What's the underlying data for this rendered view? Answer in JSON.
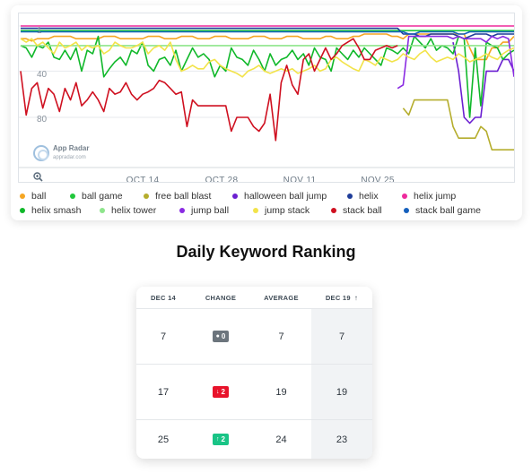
{
  "chart_data": {
    "type": "line",
    "x_labels": [
      "OCT 14",
      "OCT 28",
      "NOV 11",
      "NOV 25"
    ],
    "y_ticks": [
      "1",
      "40",
      "80"
    ],
    "y_reversed": true,
    "ylim": [
      1,
      100
    ],
    "series": [
      {
        "name": "ball",
        "color": "#f5a623",
        "values": [
          12,
          12,
          14,
          12,
          12,
          12,
          10,
          10,
          10,
          10,
          12,
          12,
          12,
          12,
          12,
          10,
          10,
          10,
          12,
          12,
          12,
          12,
          12,
          10,
          10,
          10,
          12,
          12,
          12,
          10,
          10,
          10,
          12,
          12,
          12,
          10,
          10,
          10,
          12,
          12,
          12,
          12,
          10,
          10,
          10,
          12,
          12,
          12,
          10,
          10,
          10,
          12,
          12,
          12,
          12,
          10,
          10,
          12,
          12,
          12,
          10,
          10,
          8,
          8,
          8,
          8,
          8,
          10,
          10,
          12,
          8,
          8,
          8,
          8,
          8,
          8,
          8,
          8,
          8,
          8,
          8,
          20,
          30,
          30,
          30,
          20,
          20,
          15,
          15,
          10
        ]
      },
      {
        "name": "ball game",
        "color": "#21c73b",
        "values": [
          5,
          5,
          5,
          5,
          5,
          5,
          5,
          5,
          5,
          5,
          5,
          5,
          5,
          5,
          5,
          5,
          5,
          5,
          5,
          5,
          5,
          5,
          5,
          5,
          5,
          5,
          5,
          5,
          5,
          5,
          5,
          5,
          5,
          5,
          5,
          5,
          5,
          5,
          5,
          5,
          5,
          5,
          5,
          5,
          5,
          5,
          5,
          5,
          5,
          5,
          5,
          5,
          5,
          5,
          5,
          5,
          5,
          5,
          5,
          5,
          5,
          5,
          5,
          5,
          5,
          5,
          5,
          5,
          5,
          5,
          5,
          5,
          5,
          5,
          5,
          5,
          5,
          5,
          5,
          5,
          5,
          5,
          5,
          5,
          5,
          5,
          5,
          5,
          5,
          5
        ]
      },
      {
        "name": "free ball blast",
        "color": "#b5ad2d",
        "values": [
          null,
          null,
          null,
          null,
          null,
          null,
          null,
          null,
          null,
          null,
          null,
          null,
          null,
          null,
          null,
          null,
          null,
          null,
          null,
          null,
          null,
          null,
          null,
          null,
          null,
          null,
          null,
          null,
          null,
          null,
          null,
          null,
          null,
          null,
          null,
          null,
          null,
          null,
          null,
          null,
          null,
          null,
          null,
          null,
          null,
          null,
          null,
          null,
          null,
          null,
          null,
          null,
          null,
          null,
          null,
          null,
          null,
          null,
          null,
          null,
          null,
          null,
          null,
          null,
          null,
          null,
          null,
          null,
          null,
          72,
          78,
          65,
          65,
          65,
          65,
          65,
          65,
          65,
          88,
          98,
          98,
          98,
          98,
          88,
          92,
          108,
          108,
          108,
          108,
          108
        ]
      },
      {
        "name": "halloween ball jump",
        "color": "#6b1fd1",
        "values": [
          null,
          null,
          null,
          null,
          null,
          null,
          null,
          null,
          null,
          null,
          null,
          null,
          null,
          null,
          null,
          null,
          null,
          null,
          null,
          null,
          null,
          null,
          null,
          null,
          null,
          null,
          null,
          null,
          null,
          null,
          null,
          null,
          null,
          null,
          null,
          null,
          null,
          null,
          null,
          null,
          null,
          null,
          null,
          null,
          null,
          null,
          null,
          null,
          null,
          null,
          null,
          null,
          null,
          null,
          null,
          null,
          null,
          null,
          null,
          null,
          null,
          null,
          null,
          null,
          null,
          null,
          null,
          null,
          null,
          null,
          null,
          null,
          null,
          null,
          null,
          null,
          null,
          null,
          15,
          40,
          80,
          85,
          80,
          80,
          40,
          40,
          40,
          30,
          30,
          40
        ]
      },
      {
        "name": "helix",
        "color": "#1f3d99",
        "values": [
          3,
          3,
          3,
          3,
          3,
          3,
          3,
          3,
          3,
          3,
          3,
          3,
          3,
          3,
          3,
          3,
          3,
          3,
          3,
          3,
          3,
          3,
          3,
          3,
          3,
          3,
          3,
          3,
          3,
          3,
          3,
          3,
          3,
          3,
          3,
          3,
          3,
          3,
          3,
          3,
          3,
          3,
          3,
          3,
          3,
          3,
          3,
          3,
          3,
          3,
          3,
          3,
          3,
          3,
          3,
          3,
          3,
          3,
          3,
          3,
          3,
          3,
          3,
          3,
          3,
          3,
          3,
          3,
          3,
          8,
          8,
          8,
          10,
          10,
          8,
          8,
          8,
          8,
          8,
          10,
          12,
          10,
          8,
          8,
          8,
          10,
          8,
          8,
          8,
          8
        ]
      },
      {
        "name": "helix jump",
        "color": "#ee2a9c",
        "values": [
          1,
          1,
          1,
          1,
          1,
          1,
          1,
          1,
          1,
          1,
          1,
          1,
          1,
          1,
          1,
          1,
          1,
          1,
          1,
          1,
          1,
          1,
          1,
          1,
          1,
          1,
          1,
          1,
          1,
          1,
          1,
          1,
          1,
          1,
          1,
          1,
          1,
          1,
          1,
          1,
          1,
          1,
          1,
          1,
          1,
          1,
          1,
          1,
          1,
          1,
          1,
          1,
          1,
          1,
          1,
          1,
          1,
          1,
          1,
          1,
          1,
          1,
          1,
          1,
          1,
          1,
          1,
          1,
          1,
          1,
          1,
          1,
          1,
          1,
          1,
          1,
          1,
          1,
          1,
          1,
          1,
          1,
          1,
          1,
          1,
          1,
          1,
          1,
          1,
          1
        ]
      },
      {
        "name": "helix smash",
        "color": "#10b82a",
        "values": [
          18,
          20,
          28,
          18,
          20,
          15,
          28,
          30,
          22,
          30,
          20,
          40,
          22,
          25,
          10,
          45,
          38,
          32,
          28,
          35,
          22,
          25,
          15,
          35,
          40,
          30,
          28,
          35,
          22,
          40,
          30,
          20,
          28,
          25,
          30,
          45,
          35,
          40,
          20,
          28,
          30,
          35,
          22,
          30,
          40,
          25,
          35,
          30,
          28,
          22,
          30,
          25,
          35,
          20,
          28,
          30,
          40,
          20,
          25,
          30,
          22,
          28,
          20,
          25,
          30,
          35,
          20,
          22,
          25,
          20,
          25,
          10,
          15,
          20,
          12,
          22,
          18,
          20,
          25,
          10,
          12,
          80,
          20,
          70,
          15,
          18,
          20,
          30,
          25,
          22
        ]
      },
      {
        "name": "helix tower",
        "color": "#8ee58c",
        "values": [
          18,
          18,
          18,
          18,
          18,
          18,
          18,
          18,
          18,
          18,
          18,
          18,
          18,
          18,
          18,
          18,
          18,
          18,
          18,
          18,
          18,
          18,
          18,
          18,
          18,
          18,
          18,
          18,
          18,
          18,
          18,
          18,
          18,
          18,
          18,
          18,
          18,
          18,
          18,
          18,
          18,
          18,
          18,
          18,
          18,
          18,
          18,
          18,
          18,
          18,
          18,
          18,
          18,
          18,
          18,
          18,
          18,
          18,
          18,
          18,
          18,
          18,
          18,
          18,
          18,
          18,
          18,
          18,
          18,
          18,
          18,
          18,
          18,
          18,
          18,
          18,
          18,
          18,
          18,
          18,
          18,
          18,
          18,
          18,
          18,
          18,
          18,
          18,
          18,
          18
        ]
      },
      {
        "name": "jump ball",
        "color": "#8a2be2",
        "values": [
          null,
          null,
          null,
          null,
          null,
          null,
          null,
          null,
          null,
          null,
          null,
          null,
          null,
          null,
          null,
          null,
          null,
          null,
          null,
          null,
          null,
          null,
          null,
          null,
          null,
          null,
          null,
          null,
          null,
          null,
          null,
          null,
          null,
          null,
          null,
          null,
          null,
          null,
          null,
          null,
          null,
          null,
          null,
          null,
          null,
          null,
          null,
          null,
          null,
          null,
          null,
          null,
          null,
          null,
          null,
          null,
          null,
          null,
          null,
          null,
          null,
          null,
          null,
          null,
          null,
          null,
          null,
          null,
          55,
          52,
          10,
          10,
          10,
          10,
          10,
          10,
          10,
          10,
          12,
          10,
          12,
          12,
          12,
          12,
          15,
          10,
          12,
          10,
          12,
          45
        ]
      },
      {
        "name": "jump stack",
        "color": "#f2e34a",
        "values": [
          12,
          15,
          12,
          18,
          15,
          20,
          25,
          15,
          20,
          18,
          15,
          22,
          18,
          20,
          18,
          25,
          22,
          15,
          18,
          20,
          20,
          18,
          15,
          25,
          20,
          18,
          22,
          15,
          30,
          40,
          38,
          35,
          38,
          38,
          32,
          30,
          35,
          38,
          40,
          42,
          45,
          40,
          38,
          35,
          40,
          42,
          40,
          38,
          40,
          38,
          42,
          40,
          38,
          35,
          40,
          38,
          30,
          28,
          32,
          35,
          38,
          40,
          30,
          32,
          35,
          28,
          30,
          32,
          30,
          25,
          28,
          30,
          25,
          22,
          28,
          32,
          30,
          28,
          30,
          25,
          28,
          32,
          30,
          28,
          25,
          28,
          30,
          25,
          22,
          20
        ]
      },
      {
        "name": "stack ball",
        "color": "#cf1020",
        "values": [
          40,
          78,
          55,
          50,
          72,
          55,
          60,
          75,
          55,
          65,
          50,
          70,
          65,
          58,
          65,
          75,
          55,
          60,
          58,
          50,
          60,
          65,
          60,
          58,
          55,
          48,
          50,
          55,
          60,
          58,
          88,
          65,
          70,
          70,
          70,
          70,
          70,
          70,
          92,
          80,
          80,
          80,
          88,
          92,
          85,
          60,
          100,
          50,
          35,
          52,
          60,
          30,
          25,
          40,
          30,
          20,
          30,
          25,
          18,
          15,
          12,
          20,
          30,
          30,
          22,
          20,
          18,
          20,
          18,
          null,
          null,
          null,
          null,
          null,
          null,
          null,
          null,
          null,
          null,
          null,
          null,
          null,
          null,
          null,
          null,
          null,
          null,
          null,
          null,
          null
        ]
      },
      {
        "name": "stack ball game",
        "color": "#1560bd",
        "values": [
          6,
          6,
          6,
          6,
          6,
          6,
          6,
          6,
          6,
          6,
          6,
          6,
          6,
          6,
          6,
          6,
          6,
          6,
          6,
          6,
          6,
          6,
          6,
          6,
          6,
          6,
          6,
          6,
          6,
          6,
          6,
          6,
          6,
          6,
          6,
          6,
          6,
          6,
          6,
          6,
          6,
          6,
          6,
          6,
          6,
          6,
          6,
          6,
          6,
          6,
          6,
          6,
          6,
          6,
          6,
          6,
          6,
          6,
          6,
          6,
          6,
          6,
          6,
          6,
          6,
          6,
          6,
          6,
          6,
          6,
          8,
          8,
          6,
          6,
          6,
          6,
          6,
          6,
          6,
          8,
          8,
          6,
          6,
          6,
          6,
          6,
          6,
          6,
          6,
          6
        ]
      }
    ],
    "grid": true,
    "legend_position": "bottom"
  },
  "watermark": {
    "name": "App Radar",
    "url": "appradar.com"
  },
  "zoom_icon": "zoom-in-icon",
  "legend_rows": [
    [
      "ball",
      "ball game",
      "free ball blast",
      "halloween ball jump",
      "helix",
      "helix jump"
    ],
    [
      "helix smash",
      "helix tower",
      "jump ball",
      "jump stack",
      "stack ball",
      "stack ball game"
    ]
  ],
  "section_title": "Daily Keyword Ranking",
  "table": {
    "headers": {
      "c1": "DEC 14",
      "c2": "CHANGE",
      "c3": "AVERAGE",
      "c4": "DEC 19"
    },
    "sort_icon": "arrow-up-icon",
    "rows": [
      {
        "dec14": "7",
        "change": "0",
        "change_dir": "none",
        "average": "7",
        "dec19": "7"
      },
      {
        "dec14": "17",
        "change": "2",
        "change_dir": "down",
        "average": "19",
        "dec19": "19"
      },
      {
        "dec14": "25",
        "change": "2",
        "change_dir": "up",
        "average": "24",
        "dec19": "23"
      }
    ],
    "badge_colors": {
      "none": "#6c757d",
      "down": "#e8132b",
      "up": "#19c486"
    }
  }
}
